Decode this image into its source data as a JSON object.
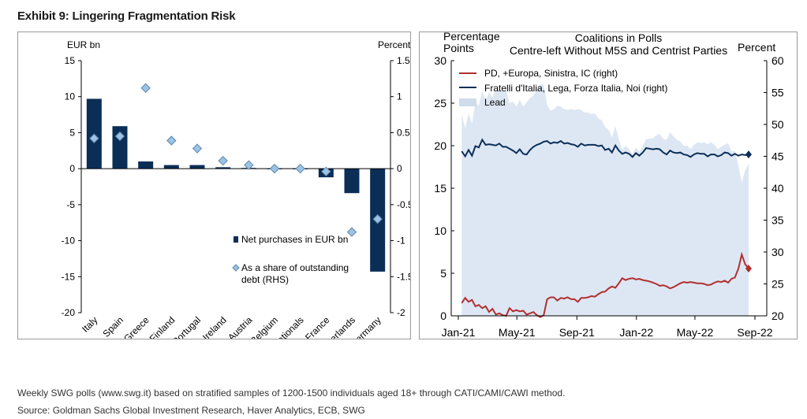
{
  "exhibit_title": "Exhibit 9: Lingering Fragmentation Risk",
  "footnote": "Weekly SWG polls (www.swg.it) based on stratified samples of 1200-1500 individuals aged 18+ through CATI/CAMI/CAWI method.",
  "source": "Source: Goldman Sachs Global Investment Research, Haver Analytics, ECB, SWG",
  "colors": {
    "navy": "#0b2e57",
    "diamond_fill": "#9cc3e3",
    "diamond_stroke": "#5f88ad",
    "red": "#b03030",
    "lead_fill": "#dde7f3"
  },
  "chart_data": [
    {
      "type": "bar",
      "title": "",
      "ylabel_left": "EUR bn",
      "ylabel_right": "Percent",
      "ylim": [
        -20,
        15
      ],
      "ylim_right": [
        -2,
        1.5
      ],
      "yticks_left": [
        "15",
        "10",
        "5",
        "0",
        "-5",
        "-10",
        "-15",
        "-20"
      ],
      "yticks_right": [
        "1.5",
        "1",
        "0.5",
        "0",
        "-0.5",
        "-1",
        "-1.5",
        "-2"
      ],
      "categories": [
        "Italy",
        "Spain",
        "Greece",
        "Finland",
        "Portugal",
        "Ireland",
        "Austria",
        "Belgium",
        "Supranationals",
        "France",
        "Netherlands",
        "Germany"
      ],
      "series": [
        {
          "name": "Net purchases in EUR bn",
          "axis": "left",
          "kind": "bar",
          "values": [
            9.7,
            5.9,
            1.0,
            0.5,
            0.5,
            0.2,
            0.1,
            0.0,
            0.0,
            -1.2,
            -3.4,
            -14.3
          ]
        },
        {
          "name": "As a share of outstanding debt (RHS)",
          "axis": "right",
          "kind": "marker",
          "values": [
            0.42,
            0.45,
            1.12,
            0.39,
            0.28,
            0.11,
            0.05,
            0.0,
            0.0,
            -0.04,
            -0.88,
            -0.7
          ]
        }
      ],
      "legend_position": "bottom-right"
    },
    {
      "type": "line",
      "title": "Coalitions in Polls",
      "subtitle": "Centre-left Without M5S and Centrist Parties",
      "ylabel_left": "Percentage Points",
      "ylabel_right": "Percent",
      "ylim": [
        0,
        30
      ],
      "ylim_right": [
        20,
        60
      ],
      "yticks_left": [
        "30",
        "25",
        "20",
        "15",
        "10",
        "5",
        "0"
      ],
      "yticks_right": [
        "60",
        "55",
        "50",
        "45",
        "40",
        "35",
        "30",
        "25",
        "20"
      ],
      "xlim": [
        "2021-01-01",
        "2022-09-01"
      ],
      "xticks": [
        "Jan-21",
        "May-21",
        "Sep-21",
        "Jan-22",
        "May-22",
        "Sep-22"
      ],
      "x": [
        "2021-01-08",
        "2021-01-15",
        "2021-01-22",
        "2021-01-29",
        "2021-02-05",
        "2021-02-12",
        "2021-02-19",
        "2021-02-26",
        "2021-03-05",
        "2021-03-12",
        "2021-03-19",
        "2021-03-26",
        "2021-04-02",
        "2021-04-09",
        "2021-04-16",
        "2021-04-23",
        "2021-04-30",
        "2021-05-07",
        "2021-05-14",
        "2021-05-21",
        "2021-05-28",
        "2021-06-04",
        "2021-06-11",
        "2021-06-18",
        "2021-06-25",
        "2021-07-02",
        "2021-07-09",
        "2021-07-16",
        "2021-07-23",
        "2021-07-30",
        "2021-08-06",
        "2021-08-13",
        "2021-08-20",
        "2021-08-27",
        "2021-09-03",
        "2021-09-10",
        "2021-09-17",
        "2021-09-24",
        "2021-10-01",
        "2021-10-08",
        "2021-10-15",
        "2021-10-22",
        "2021-10-29",
        "2021-11-05",
        "2021-11-12",
        "2021-11-19",
        "2021-11-26",
        "2021-12-03",
        "2021-12-10",
        "2021-12-17",
        "2021-12-24",
        "2021-12-31",
        "2022-01-07",
        "2022-01-14",
        "2022-01-21",
        "2022-01-28",
        "2022-02-04",
        "2022-02-11",
        "2022-02-18",
        "2022-02-25",
        "2022-03-04",
        "2022-03-11",
        "2022-03-18",
        "2022-03-25",
        "2022-04-01",
        "2022-04-08",
        "2022-04-15",
        "2022-04-22",
        "2022-04-29",
        "2022-05-06",
        "2022-05-13",
        "2022-05-20",
        "2022-05-27",
        "2022-06-03",
        "2022-06-10",
        "2022-06-17",
        "2022-06-24",
        "2022-07-01",
        "2022-07-08",
        "2022-07-15",
        "2022-07-22",
        "2022-07-29",
        "2022-08-05",
        "2022-08-12",
        "2022-08-19"
      ],
      "series": [
        {
          "name": "PD, +Europa, Sinistra, IC (right)",
          "axis": "right",
          "color": "#b03030",
          "values": [
            22.0,
            22.8,
            22.2,
            22.5,
            21.5,
            21.7,
            21.2,
            21.5,
            20.6,
            21.1,
            20.2,
            20.4,
            20.1,
            20.0,
            21.2,
            20.7,
            20.9,
            20.7,
            20.8,
            20.2,
            20.4,
            20.6,
            20.1,
            19.8,
            20.1,
            22.6,
            22.9,
            22.9,
            22.4,
            22.8,
            22.7,
            22.9,
            22.6,
            22.6,
            22.2,
            22.8,
            22.8,
            22.9,
            23.1,
            23.0,
            23.4,
            23.7,
            23.8,
            24.3,
            24.6,
            24.4,
            25.1,
            25.9,
            25.6,
            25.8,
            25.9,
            25.7,
            25.8,
            25.6,
            25.5,
            25.4,
            25.2,
            25.0,
            24.7,
            24.8,
            24.6,
            24.3,
            24.5,
            24.8,
            25.1,
            25.3,
            25.2,
            25.3,
            25.2,
            25.1,
            25.1,
            25.0,
            24.8,
            24.9,
            25.2,
            25.4,
            25.3,
            25.5,
            25.2,
            25.8,
            26.0,
            27.4,
            29.6,
            28.1,
            27.4
          ]
        },
        {
          "name": "Fratelli d'Italia, Lega, Forza Italia, Noi (right)",
          "axis": "right",
          "color": "#0b2e57",
          "values": [
            45.8,
            45.0,
            46.0,
            45.1,
            46.6,
            46.4,
            47.6,
            46.8,
            46.9,
            46.8,
            46.7,
            47.0,
            46.5,
            46.5,
            46.2,
            45.9,
            45.5,
            46.1,
            45.4,
            45.3,
            46.0,
            46.5,
            46.8,
            47.0,
            47.3,
            47.4,
            47.0,
            47.2,
            47.1,
            47.4,
            47.0,
            47.1,
            46.9,
            46.8,
            46.5,
            47.0,
            46.7,
            46.8,
            46.8,
            46.8,
            46.6,
            46.7,
            46.0,
            46.2,
            45.6,
            46.7,
            45.9,
            45.4,
            45.6,
            45.4,
            44.9,
            45.5,
            45.1,
            45.6,
            46.3,
            46.2,
            46.1,
            46.2,
            46.1,
            45.6,
            45.3,
            45.9,
            45.6,
            45.5,
            45.6,
            45.3,
            45.2,
            44.9,
            45.3,
            45.5,
            45.4,
            45.4,
            45.0,
            45.3,
            45.3,
            45.0,
            45.2,
            45.6,
            45.5,
            45.1,
            45.4,
            45.1,
            45.3,
            45.2,
            45.3
          ]
        },
        {
          "name": "Lead",
          "axis": "left",
          "kind": "area",
          "color": "#dde7f3",
          "values": [
            23.7,
            22.1,
            23.8,
            22.6,
            25.1,
            24.7,
            26.4,
            25.3,
            26.3,
            25.7,
            26.5,
            26.6,
            26.4,
            26.5,
            25.0,
            25.2,
            24.6,
            25.4,
            24.6,
            25.1,
            25.6,
            25.9,
            26.7,
            27.2,
            27.2,
            24.8,
            24.1,
            24.3,
            24.7,
            24.6,
            24.3,
            24.2,
            24.3,
            24.2,
            24.3,
            24.2,
            23.9,
            23.9,
            23.7,
            23.8,
            23.2,
            23.0,
            22.2,
            21.9,
            21.0,
            22.3,
            20.8,
            19.5,
            20.0,
            19.6,
            19.0,
            19.8,
            19.3,
            20.0,
            20.8,
            20.8,
            20.9,
            21.2,
            21.4,
            20.8,
            20.7,
            21.6,
            21.1,
            20.7,
            20.5,
            20.0,
            20.0,
            19.6,
            20.1,
            20.4,
            20.3,
            20.4,
            20.2,
            20.4,
            20.1,
            19.6,
            19.9,
            20.1,
            20.3,
            19.3,
            19.4,
            17.7,
            15.7,
            17.1,
            17.9
          ]
        }
      ],
      "legend_position": "top-left"
    }
  ]
}
